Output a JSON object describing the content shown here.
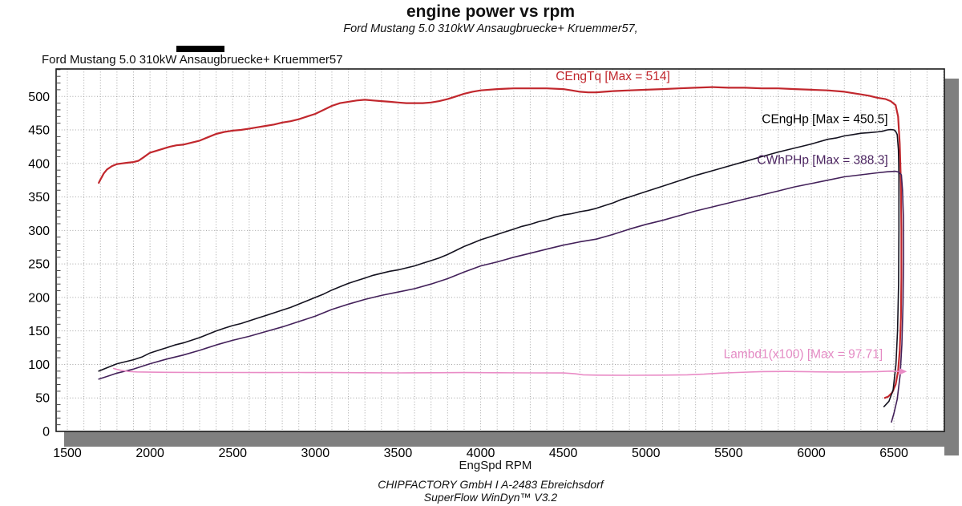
{
  "header": {
    "title": "engine power vs rpm",
    "subtitle": "Ford Mustang 5.0 310kW Ansaugbruecke+ Kruemmer57,"
  },
  "legend": {
    "label": "Ford Mustang 5.0 310kW Ansaugbruecke+ Kruemmer57",
    "swatch_color": "#000000"
  },
  "footer": {
    "line1": "CHIPFACTORY GmbH I A-2483 Ebreichsdorf",
    "line2": "SuperFlow WinDyn™ V3.2"
  },
  "chart_data": {
    "type": "line",
    "xlabel": "EngSpd RPM",
    "ylabel": "",
    "xlim": [
      1432,
      6805
    ],
    "ylim": [
      0,
      541
    ],
    "x_ticks": [
      1500,
      2000,
      2500,
      3000,
      3500,
      4000,
      4500,
      5000,
      5500,
      6000,
      6500
    ],
    "y_ticks": [
      0,
      50,
      100,
      150,
      200,
      250,
      300,
      350,
      400,
      450,
      500
    ],
    "x_minor_step": 100,
    "y_minor_step": 10,
    "grid": true,
    "grid_color": "#a3a3a3",
    "shadow_color": "#7f7f7f",
    "border_color": "#1a1a1a",
    "legend_position": "top-left-above-plot",
    "series": [
      {
        "name": "CEngTq",
        "label": "CEngTq [Max = 514]",
        "max": 514,
        "color": "#c1272d",
        "label_color": "#c1272d",
        "width": 2.2,
        "label_anchor": {
          "rpm": 4800,
          "value": 524
        },
        "points": [
          [
            1690,
            371
          ],
          [
            1700,
            376
          ],
          [
            1720,
            385
          ],
          [
            1740,
            391
          ],
          [
            1770,
            396
          ],
          [
            1800,
            399
          ],
          [
            1830,
            400
          ],
          [
            1860,
            401
          ],
          [
            1900,
            402
          ],
          [
            1930,
            404
          ],
          [
            1960,
            409
          ],
          [
            2000,
            416
          ],
          [
            2040,
            419
          ],
          [
            2080,
            422
          ],
          [
            2120,
            425
          ],
          [
            2160,
            427
          ],
          [
            2200,
            428
          ],
          [
            2250,
            431
          ],
          [
            2300,
            434
          ],
          [
            2350,
            439
          ],
          [
            2400,
            444
          ],
          [
            2450,
            447
          ],
          [
            2500,
            449
          ],
          [
            2550,
            450
          ],
          [
            2600,
            452
          ],
          [
            2650,
            454
          ],
          [
            2700,
            456
          ],
          [
            2750,
            458
          ],
          [
            2800,
            461
          ],
          [
            2850,
            463
          ],
          [
            2900,
            466
          ],
          [
            2950,
            470
          ],
          [
            3000,
            474
          ],
          [
            3050,
            480
          ],
          [
            3100,
            486
          ],
          [
            3150,
            490
          ],
          [
            3200,
            492
          ],
          [
            3250,
            494
          ],
          [
            3300,
            495
          ],
          [
            3350,
            494
          ],
          [
            3400,
            493
          ],
          [
            3450,
            492
          ],
          [
            3500,
            491
          ],
          [
            3550,
            490
          ],
          [
            3600,
            490
          ],
          [
            3650,
            490
          ],
          [
            3700,
            491
          ],
          [
            3750,
            493
          ],
          [
            3800,
            496
          ],
          [
            3850,
            500
          ],
          [
            3900,
            504
          ],
          [
            3950,
            507
          ],
          [
            4000,
            509
          ],
          [
            4100,
            511
          ],
          [
            4200,
            512
          ],
          [
            4300,
            512
          ],
          [
            4400,
            512
          ],
          [
            4500,
            511
          ],
          [
            4550,
            509
          ],
          [
            4600,
            507
          ],
          [
            4650,
            506
          ],
          [
            4700,
            506
          ],
          [
            4750,
            507
          ],
          [
            4800,
            508
          ],
          [
            4900,
            509
          ],
          [
            5000,
            510
          ],
          [
            5100,
            511
          ],
          [
            5200,
            512
          ],
          [
            5300,
            513
          ],
          [
            5400,
            514
          ],
          [
            5500,
            513
          ],
          [
            5600,
            513
          ],
          [
            5700,
            512
          ],
          [
            5800,
            512
          ],
          [
            5900,
            511
          ],
          [
            6000,
            510
          ],
          [
            6100,
            509
          ],
          [
            6200,
            507
          ],
          [
            6250,
            505
          ],
          [
            6300,
            503
          ],
          [
            6350,
            501
          ],
          [
            6400,
            498
          ],
          [
            6450,
            496
          ],
          [
            6480,
            493
          ],
          [
            6510,
            487
          ],
          [
            6525,
            470
          ],
          [
            6535,
            430
          ],
          [
            6542,
            370
          ],
          [
            6545,
            300
          ],
          [
            6545,
            230
          ],
          [
            6542,
            170
          ],
          [
            6535,
            120
          ],
          [
            6525,
            90
          ],
          [
            6510,
            70
          ],
          [
            6490,
            58
          ],
          [
            6465,
            52
          ],
          [
            6445,
            50
          ]
        ]
      },
      {
        "name": "CEngHp",
        "label": "CEngHp [Max = 450.5]",
        "max": 450.5,
        "color": "#14121f",
        "label_color": "#000000",
        "width": 1.6,
        "label_anchor": {
          "rpm": 6082,
          "value": 460.5
        },
        "points": [
          [
            1690,
            90
          ],
          [
            1750,
            96
          ],
          [
            1800,
            101
          ],
          [
            1850,
            104
          ],
          [
            1900,
            107
          ],
          [
            1950,
            111
          ],
          [
            2000,
            117
          ],
          [
            2050,
            121
          ],
          [
            2100,
            125
          ],
          [
            2150,
            129
          ],
          [
            2200,
            132
          ],
          [
            2250,
            136
          ],
          [
            2300,
            140
          ],
          [
            2350,
            145
          ],
          [
            2400,
            150
          ],
          [
            2450,
            154
          ],
          [
            2500,
            158
          ],
          [
            2550,
            161
          ],
          [
            2600,
            165
          ],
          [
            2650,
            169
          ],
          [
            2700,
            173
          ],
          [
            2750,
            177
          ],
          [
            2800,
            181
          ],
          [
            2850,
            185
          ],
          [
            2900,
            190
          ],
          [
            2950,
            195
          ],
          [
            3000,
            200
          ],
          [
            3050,
            205
          ],
          [
            3100,
            211
          ],
          [
            3150,
            216
          ],
          [
            3200,
            221
          ],
          [
            3250,
            225
          ],
          [
            3300,
            229
          ],
          [
            3350,
            233
          ],
          [
            3400,
            236
          ],
          [
            3450,
            239
          ],
          [
            3500,
            241
          ],
          [
            3550,
            244
          ],
          [
            3600,
            247
          ],
          [
            3650,
            251
          ],
          [
            3700,
            255
          ],
          [
            3750,
            259
          ],
          [
            3800,
            264
          ],
          [
            3850,
            270
          ],
          [
            3900,
            276
          ],
          [
            3950,
            281
          ],
          [
            4000,
            286
          ],
          [
            4050,
            290
          ],
          [
            4100,
            294
          ],
          [
            4150,
            298
          ],
          [
            4200,
            302
          ],
          [
            4250,
            306
          ],
          [
            4300,
            309
          ],
          [
            4350,
            313
          ],
          [
            4400,
            316
          ],
          [
            4450,
            320
          ],
          [
            4500,
            323
          ],
          [
            4550,
            325
          ],
          [
            4600,
            328
          ],
          [
            4650,
            330
          ],
          [
            4700,
            333
          ],
          [
            4750,
            337
          ],
          [
            4800,
            341
          ],
          [
            4850,
            346
          ],
          [
            4900,
            350
          ],
          [
            4950,
            354
          ],
          [
            5000,
            358
          ],
          [
            5100,
            366
          ],
          [
            5200,
            374
          ],
          [
            5300,
            382
          ],
          [
            5400,
            389
          ],
          [
            5500,
            396
          ],
          [
            5600,
            403
          ],
          [
            5700,
            410
          ],
          [
            5800,
            417
          ],
          [
            5900,
            423
          ],
          [
            6000,
            429
          ],
          [
            6100,
            436
          ],
          [
            6150,
            438
          ],
          [
            6200,
            441
          ],
          [
            6250,
            443
          ],
          [
            6300,
            445
          ],
          [
            6350,
            446
          ],
          [
            6400,
            447
          ],
          [
            6430,
            448
          ],
          [
            6460,
            450
          ],
          [
            6480,
            450.5
          ],
          [
            6500,
            450
          ],
          [
            6510,
            448
          ],
          [
            6520,
            443
          ],
          [
            6527,
            420
          ],
          [
            6530,
            380
          ],
          [
            6530,
            300
          ],
          [
            6528,
            220
          ],
          [
            6522,
            150
          ],
          [
            6512,
            100
          ],
          [
            6495,
            62
          ],
          [
            6470,
            45
          ],
          [
            6440,
            37
          ]
        ]
      },
      {
        "name": "CWhPHp",
        "label": "CWhPHp [Max = 388.3]",
        "max": 388.3,
        "color": "#43215a",
        "label_color": "#4b2460",
        "width": 1.6,
        "label_anchor": {
          "rpm": 6068,
          "value": 399
        },
        "points": [
          [
            1690,
            78
          ],
          [
            1750,
            83
          ],
          [
            1800,
            87
          ],
          [
            1900,
            93
          ],
          [
            2000,
            101
          ],
          [
            2100,
            108
          ],
          [
            2200,
            114
          ],
          [
            2300,
            121
          ],
          [
            2400,
            129
          ],
          [
            2500,
            136
          ],
          [
            2600,
            142
          ],
          [
            2700,
            149
          ],
          [
            2800,
            156
          ],
          [
            2900,
            164
          ],
          [
            3000,
            172
          ],
          [
            3100,
            182
          ],
          [
            3200,
            190
          ],
          [
            3300,
            197
          ],
          [
            3400,
            203
          ],
          [
            3500,
            208
          ],
          [
            3600,
            213
          ],
          [
            3700,
            220
          ],
          [
            3800,
            228
          ],
          [
            3900,
            238
          ],
          [
            4000,
            247
          ],
          [
            4100,
            253
          ],
          [
            4200,
            260
          ],
          [
            4300,
            266
          ],
          [
            4400,
            272
          ],
          [
            4500,
            278
          ],
          [
            4600,
            283
          ],
          [
            4700,
            287
          ],
          [
            4800,
            294
          ],
          [
            4900,
            302
          ],
          [
            5000,
            309
          ],
          [
            5100,
            315
          ],
          [
            5200,
            322
          ],
          [
            5300,
            329
          ],
          [
            5400,
            335
          ],
          [
            5500,
            341
          ],
          [
            5600,
            347
          ],
          [
            5700,
            353
          ],
          [
            5800,
            359
          ],
          [
            5900,
            365
          ],
          [
            6000,
            370
          ],
          [
            6100,
            375
          ],
          [
            6200,
            380
          ],
          [
            6300,
            383
          ],
          [
            6400,
            386
          ],
          [
            6460,
            387.5
          ],
          [
            6510,
            388.3
          ],
          [
            6530,
            387
          ],
          [
            6545,
            383
          ],
          [
            6552,
            360
          ],
          [
            6557,
            320
          ],
          [
            6558,
            260
          ],
          [
            6555,
            190
          ],
          [
            6548,
            130
          ],
          [
            6538,
            85
          ],
          [
            6520,
            48
          ],
          [
            6500,
            27
          ],
          [
            6485,
            14
          ]
        ]
      },
      {
        "name": "Lambd1(x100)",
        "label": "Lambd1(x100) [Max = 97.71]",
        "max": 97.71,
        "color": "#e98cc6",
        "label_color": "#e48bc4",
        "width": 1.6,
        "arrow_end": true,
        "label_anchor": {
          "rpm": 5951,
          "value": 109.5
        },
        "points": [
          [
            1780,
            94
          ],
          [
            1800,
            92.5
          ],
          [
            1830,
            91
          ],
          [
            1870,
            89.5
          ],
          [
            1920,
            88.8
          ],
          [
            2000,
            88.4
          ],
          [
            2100,
            88.2
          ],
          [
            2300,
            88
          ],
          [
            2500,
            88
          ],
          [
            2700,
            87.8
          ],
          [
            2900,
            88
          ],
          [
            3100,
            87.8
          ],
          [
            3300,
            87.6
          ],
          [
            3500,
            87.4
          ],
          [
            3700,
            87.6
          ],
          [
            3900,
            87.8
          ],
          [
            4100,
            87.6
          ],
          [
            4300,
            87.4
          ],
          [
            4500,
            87.3
          ],
          [
            4570,
            86
          ],
          [
            4620,
            84.5
          ],
          [
            4700,
            84
          ],
          [
            4900,
            83.8
          ],
          [
            5100,
            84
          ],
          [
            5250,
            84.5
          ],
          [
            5350,
            85.5
          ],
          [
            5450,
            87
          ],
          [
            5550,
            88
          ],
          [
            5700,
            89.3
          ],
          [
            5850,
            89.5
          ],
          [
            6000,
            89
          ],
          [
            6150,
            88.7
          ],
          [
            6300,
            88.8
          ],
          [
            6400,
            89.3
          ],
          [
            6480,
            90
          ],
          [
            6540,
            89.5
          ]
        ]
      }
    ]
  }
}
